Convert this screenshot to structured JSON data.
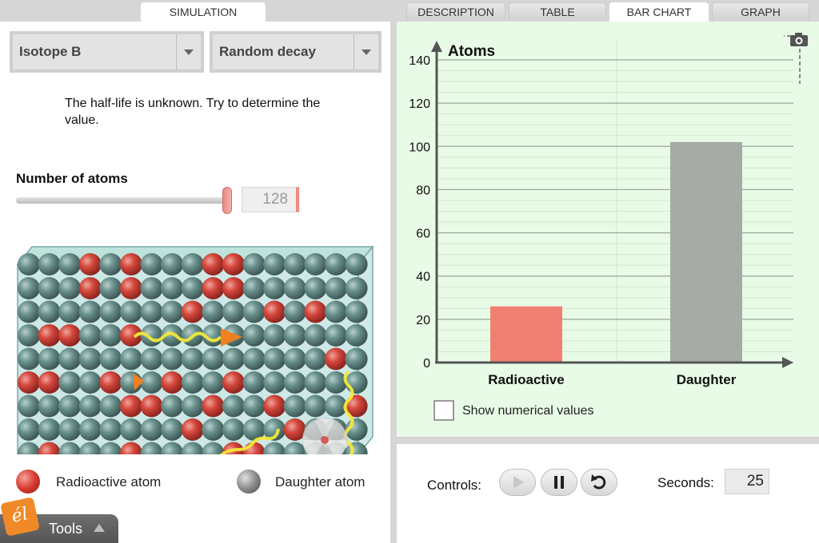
{
  "tabs": [
    {
      "label": "SIMULATION",
      "active": true
    },
    {
      "label": "DESCRIPTION",
      "active": false
    },
    {
      "label": "TABLE",
      "active": false
    },
    {
      "label": "BAR CHART",
      "active": true
    },
    {
      "label": "GRAPH",
      "active": false
    }
  ],
  "controls_left": {
    "isotope_select": "Isotope B",
    "decay_select": "Random decay",
    "instructions": "The half-life is unknown. Try to determine the value.",
    "atoms_label": "Number of atoms",
    "atoms_value": "128",
    "slider_fraction": 1.0
  },
  "legend": {
    "radioactive": "Radioactive atom",
    "daughter": "Daughter atom"
  },
  "tools": {
    "label": "Tools",
    "logo": "él"
  },
  "chart_data": {
    "type": "bar",
    "title": "Atoms",
    "categories": [
      "Radioactive",
      "Daughter"
    ],
    "values": [
      26,
      102
    ],
    "colors": [
      "#f28072",
      "#a6aba5"
    ],
    "ylim": [
      0,
      140
    ],
    "yticks": [
      "0",
      "20",
      "40",
      "60",
      "80",
      "100",
      "120",
      "140"
    ],
    "grid": true
  },
  "chart_options": {
    "show_values_label": "Show numerical values",
    "show_values_checked": false
  },
  "controls": {
    "label": "Controls:",
    "seconds_label": "Seconds:",
    "seconds_value": "25"
  },
  "colors": {
    "radioactive": "#d23b31",
    "daughter": "#5e8a86",
    "chart_bg": "#e8fbe6"
  }
}
